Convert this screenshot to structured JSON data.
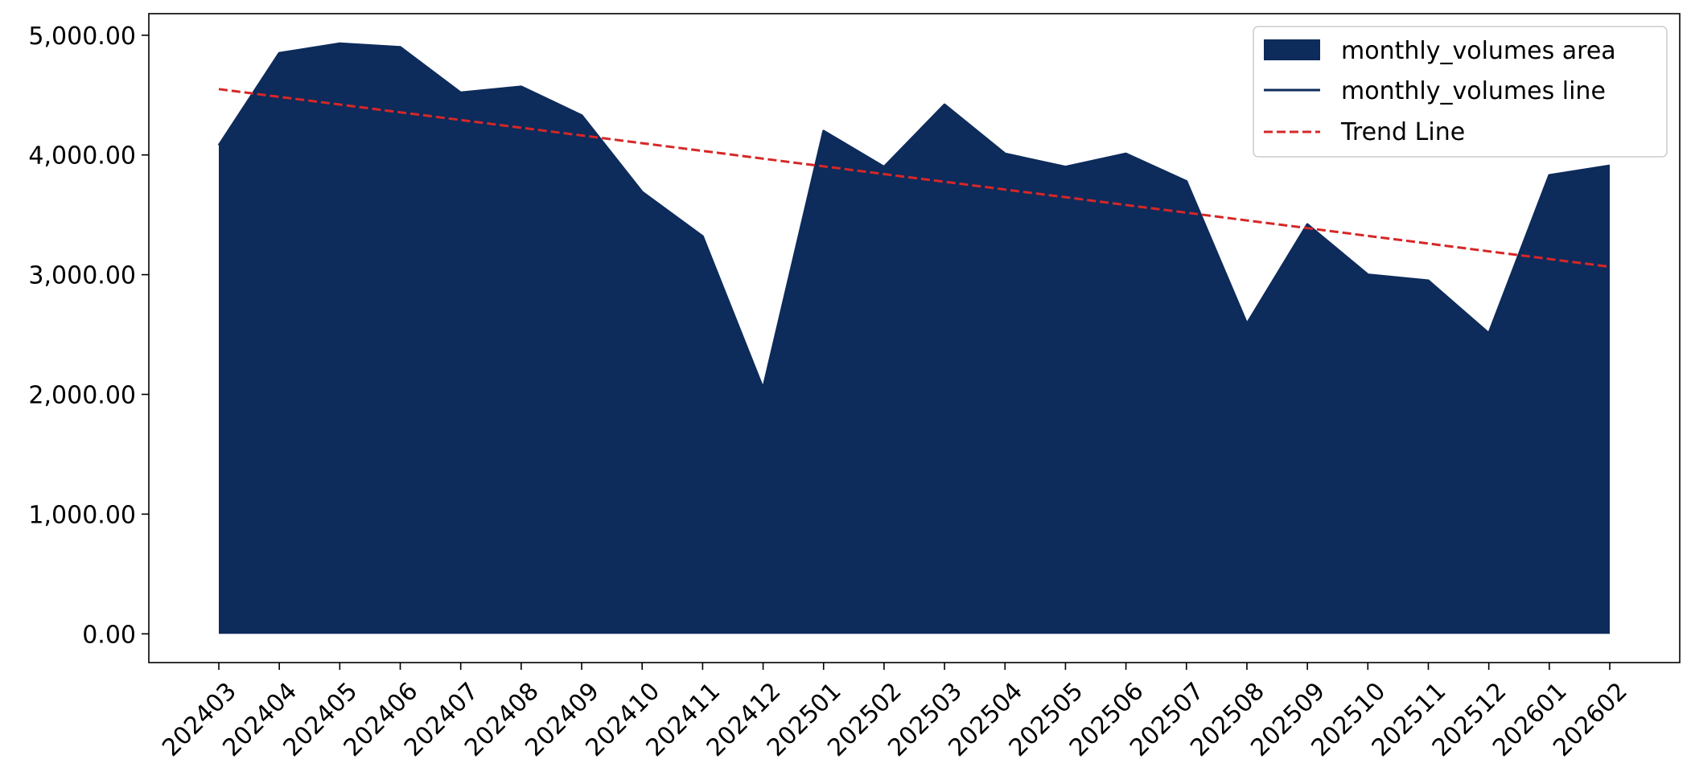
{
  "chart_data": {
    "type": "area",
    "title": "",
    "xlabel": "",
    "ylabel": "",
    "categories": [
      "202403",
      "202404",
      "202405",
      "202406",
      "202407",
      "202408",
      "202409",
      "202410",
      "202411",
      "202412",
      "202501",
      "202502",
      "202503",
      "202504",
      "202505",
      "202506",
      "202507",
      "202508",
      "202509",
      "202510",
      "202511",
      "202512",
      "202601",
      "202602"
    ],
    "series": [
      {
        "name": "monthly_volumes area",
        "kind": "area",
        "color": "#0d2b5b",
        "values": [
          4080,
          4850,
          4930,
          4900,
          4520,
          4570,
          4330,
          3690,
          3320,
          2050,
          4200,
          3900,
          4420,
          4010,
          3900,
          4010,
          3780,
          2590,
          3420,
          3000,
          2950,
          2510,
          3830,
          3910
        ]
      },
      {
        "name": "monthly_volumes line",
        "kind": "line",
        "color": "#0d2b5b",
        "values": [
          4080,
          4850,
          4930,
          4900,
          4520,
          4570,
          4330,
          3690,
          3320,
          2050,
          4200,
          3900,
          4420,
          4010,
          3900,
          4010,
          3780,
          2590,
          3420,
          3000,
          2950,
          2510,
          3830,
          3910
        ]
      },
      {
        "name": "Trend Line",
        "kind": "dashed-line",
        "color": "#d62728",
        "values": [
          4550,
          4485,
          4421,
          4356,
          4292,
          4227,
          4163,
          4098,
          4034,
          3969,
          3905,
          3840,
          3776,
          3711,
          3647,
          3582,
          3518,
          3453,
          3389,
          3324,
          3260,
          3195,
          3131,
          3066
        ]
      }
    ],
    "ylim": [
      -240,
      5180
    ],
    "yticks": [
      0,
      1000,
      2000,
      3000,
      4000,
      5000
    ],
    "ytick_labels": [
      "0.00",
      "1,000.00",
      "2,000.00",
      "3,000.00",
      "4,000.00",
      "5,000.00"
    ],
    "grid": false,
    "legend_position": "top-right",
    "legend": [
      {
        "label": "monthly_volumes area",
        "swatch": "patch",
        "color": "#0d2b5b"
      },
      {
        "label": "monthly_volumes line",
        "swatch": "line",
        "color": "#0d2b5b"
      },
      {
        "label": "Trend Line",
        "swatch": "dashed",
        "color": "#d62728"
      }
    ]
  }
}
